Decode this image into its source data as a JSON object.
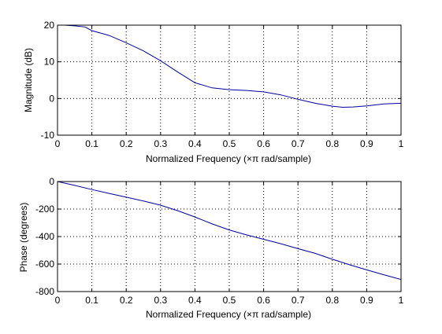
{
  "chart_data": [
    {
      "type": "line",
      "xlabel": "Normalized Frequency  (×π rad/sample)",
      "ylabel": "Magnitude (dB)",
      "xlim": [
        0,
        1
      ],
      "ylim": [
        -10,
        20
      ],
      "xticks": [
        0,
        0.1,
        0.2,
        0.3,
        0.4,
        0.5,
        0.6,
        0.7,
        0.8,
        0.9,
        1
      ],
      "xtick_labels": [
        "0",
        "0.1",
        "0.2",
        "0.3",
        "0.4",
        "0.5",
        "0.6",
        "0.7",
        "0.8",
        "0.9",
        "1"
      ],
      "yticks": [
        -10,
        0,
        10,
        20
      ],
      "ytick_labels": [
        "-10",
        "0",
        "10",
        "20"
      ],
      "grid": true,
      "grid_style": "dotted",
      "line_color": "#0000a0",
      "series": [
        {
          "x": [
            0,
            0.02,
            0.05,
            0.08,
            0.1,
            0.15,
            0.2,
            0.25,
            0.3,
            0.35,
            0.4,
            0.45,
            0.5,
            0.55,
            0.6,
            0.65,
            0.7,
            0.75,
            0.8,
            0.83,
            0.86,
            0.9,
            0.95,
            1.0
          ],
          "y": [
            20,
            20,
            19.8,
            19.5,
            18.5,
            17.2,
            15.2,
            13.0,
            10.3,
            7.2,
            4.3,
            2.9,
            2.4,
            2.2,
            1.8,
            1.0,
            -0.2,
            -1.3,
            -2.1,
            -2.4,
            -2.3,
            -2.0,
            -1.5,
            -1.3
          ]
        }
      ]
    },
    {
      "type": "line",
      "xlabel": "Normalized Frequency  (×π rad/sample)",
      "ylabel": "Phase (degrees)",
      "xlim": [
        0,
        1
      ],
      "ylim": [
        -800,
        0
      ],
      "xticks": [
        0,
        0.1,
        0.2,
        0.3,
        0.4,
        0.5,
        0.6,
        0.7,
        0.8,
        0.9,
        1
      ],
      "xtick_labels": [
        "0",
        "0.1",
        "0.2",
        "0.3",
        "0.4",
        "0.5",
        "0.6",
        "0.7",
        "0.8",
        "0.9",
        "1"
      ],
      "yticks": [
        -800,
        -600,
        -400,
        -200,
        0
      ],
      "ytick_labels": [
        "-800",
        "-600",
        "-400",
        "-200",
        "0"
      ],
      "grid": true,
      "grid_style": "dotted",
      "line_color": "#0000a0",
      "series": [
        {
          "x": [
            0,
            0.05,
            0.1,
            0.15,
            0.2,
            0.25,
            0.3,
            0.35,
            0.4,
            0.45,
            0.5,
            0.55,
            0.6,
            0.65,
            0.7,
            0.75,
            0.8,
            0.85,
            0.9,
            0.95,
            1.0
          ],
          "y": [
            0,
            -28,
            -58,
            -86,
            -114,
            -142,
            -172,
            -212,
            -258,
            -308,
            -352,
            -388,
            -420,
            -452,
            -488,
            -522,
            -565,
            -605,
            -642,
            -678,
            -712
          ]
        }
      ]
    }
  ]
}
